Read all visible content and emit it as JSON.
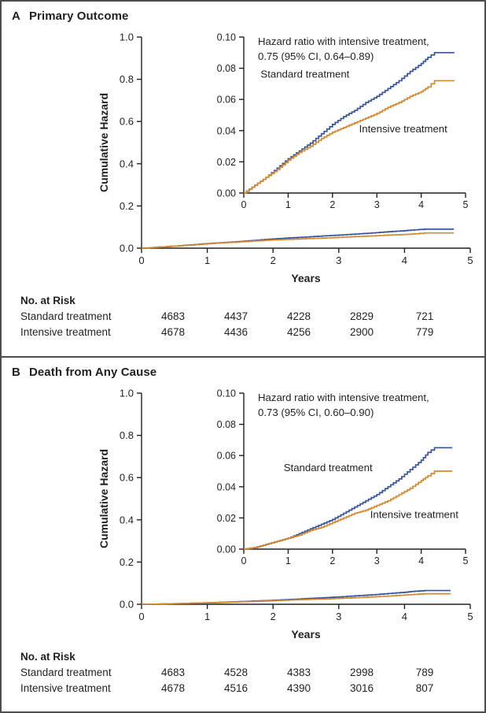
{
  "chart_data": [
    {
      "type": "line",
      "panel_letter": "A",
      "panel_title": "Primary Outcome",
      "xlabel": "Years",
      "ylabel": "Cumulative Hazard",
      "xlim": [
        0,
        5
      ],
      "xticks": [
        "0",
        "1",
        "2",
        "3",
        "4",
        "5"
      ],
      "main_ylim": [
        0,
        1.0
      ],
      "main_yticks": [
        "0.0",
        "0.2",
        "0.4",
        "0.6",
        "0.8",
        "1.0"
      ],
      "inset_ylim": [
        0,
        0.1
      ],
      "inset_yticks": [
        "0.00",
        "0.02",
        "0.04",
        "0.06",
        "0.08",
        "0.10"
      ],
      "annotation_line1": "Hazard ratio with intensive treatment,",
      "annotation_line2": "0.75 (95% CI, 0.64–0.89)",
      "legend": "inline-labels",
      "grid": false,
      "series": [
        {
          "name": "Standard treatment",
          "color": "#35549e",
          "label_pos": [
            0.38,
            0.074
          ],
          "x": [
            0,
            0.25,
            0.5,
            0.75,
            1,
            1.25,
            1.5,
            1.75,
            2,
            2.25,
            2.5,
            2.75,
            3,
            3.25,
            3.5,
            3.75,
            4,
            4.15,
            4.3,
            4.75
          ],
          "y": [
            0,
            0.005,
            0.01,
            0.016,
            0.022,
            0.027,
            0.032,
            0.038,
            0.044,
            0.049,
            0.053,
            0.058,
            0.062,
            0.067,
            0.072,
            0.078,
            0.083,
            0.087,
            0.09,
            0.09
          ]
        },
        {
          "name": "Intensive treatment",
          "color": "#d4882d",
          "label_pos": [
            2.6,
            0.039
          ],
          "x": [
            0,
            0.25,
            0.5,
            0.75,
            1,
            1.25,
            1.5,
            1.75,
            2,
            2.25,
            2.5,
            2.75,
            3,
            3.25,
            3.5,
            3.75,
            4,
            4.15,
            4.3,
            4.75
          ],
          "y": [
            0,
            0.005,
            0.01,
            0.015,
            0.021,
            0.026,
            0.03,
            0.035,
            0.039,
            0.042,
            0.045,
            0.048,
            0.051,
            0.055,
            0.058,
            0.062,
            0.065,
            0.068,
            0.072,
            0.072
          ]
        }
      ],
      "risk_table": {
        "title": "No. at Risk",
        "rows": [
          {
            "label": "Standard treatment",
            "values": [
              "4683",
              "4437",
              "4228",
              "2829",
              "721"
            ]
          },
          {
            "label": "Intensive treatment",
            "values": [
              "4678",
              "4436",
              "4256",
              "2900",
              "779"
            ]
          }
        ]
      }
    },
    {
      "type": "line",
      "panel_letter": "B",
      "panel_title": "Death from Any Cause",
      "xlabel": "Years",
      "ylabel": "Cumulative Hazard",
      "xlim": [
        0,
        5
      ],
      "xticks": [
        "0",
        "1",
        "2",
        "3",
        "4",
        "5"
      ],
      "main_ylim": [
        0,
        1.0
      ],
      "main_yticks": [
        "0.0",
        "0.2",
        "0.4",
        "0.6",
        "0.8",
        "1.0"
      ],
      "inset_ylim": [
        0,
        0.1
      ],
      "inset_yticks": [
        "0.00",
        "0.02",
        "0.04",
        "0.06",
        "0.08",
        "0.10"
      ],
      "annotation_line1": "Hazard ratio with intensive treatment,",
      "annotation_line2": "0.73 (95% CI, 0.60–0.90)",
      "legend": "inline-labels",
      "grid": false,
      "series": [
        {
          "name": "Standard treatment",
          "color": "#35549e",
          "label_pos": [
            0.9,
            0.05
          ],
          "x": [
            0,
            0.25,
            0.5,
            0.75,
            1,
            1.25,
            1.5,
            1.75,
            2,
            2.25,
            2.5,
            2.75,
            3,
            3.25,
            3.5,
            3.75,
            4,
            4.15,
            4.3,
            4.7
          ],
          "y": [
            0,
            0.001,
            0.003,
            0.005,
            0.007,
            0.01,
            0.013,
            0.016,
            0.019,
            0.023,
            0.027,
            0.031,
            0.035,
            0.04,
            0.045,
            0.051,
            0.057,
            0.062,
            0.065,
            0.065
          ]
        },
        {
          "name": "Intensive treatment",
          "color": "#d4882d",
          "label_pos": [
            2.85,
            0.02
          ],
          "x": [
            0,
            0.25,
            0.5,
            0.75,
            1,
            1.25,
            1.5,
            1.75,
            2,
            2.25,
            2.5,
            2.75,
            3,
            3.25,
            3.5,
            3.75,
            4,
            4.15,
            4.3,
            4.7
          ],
          "y": [
            0,
            0.001,
            0.003,
            0.005,
            0.007,
            0.009,
            0.012,
            0.014,
            0.017,
            0.02,
            0.023,
            0.025,
            0.028,
            0.031,
            0.035,
            0.039,
            0.044,
            0.047,
            0.05,
            0.05
          ]
        }
      ],
      "risk_table": {
        "title": "No. at Risk",
        "rows": [
          {
            "label": "Standard treatment",
            "values": [
              "4683",
              "4528",
              "4383",
              "2998",
              "789"
            ]
          },
          {
            "label": "Intensive treatment",
            "values": [
              "4678",
              "4516",
              "4390",
              "3016",
              "807"
            ]
          }
        ]
      }
    }
  ]
}
